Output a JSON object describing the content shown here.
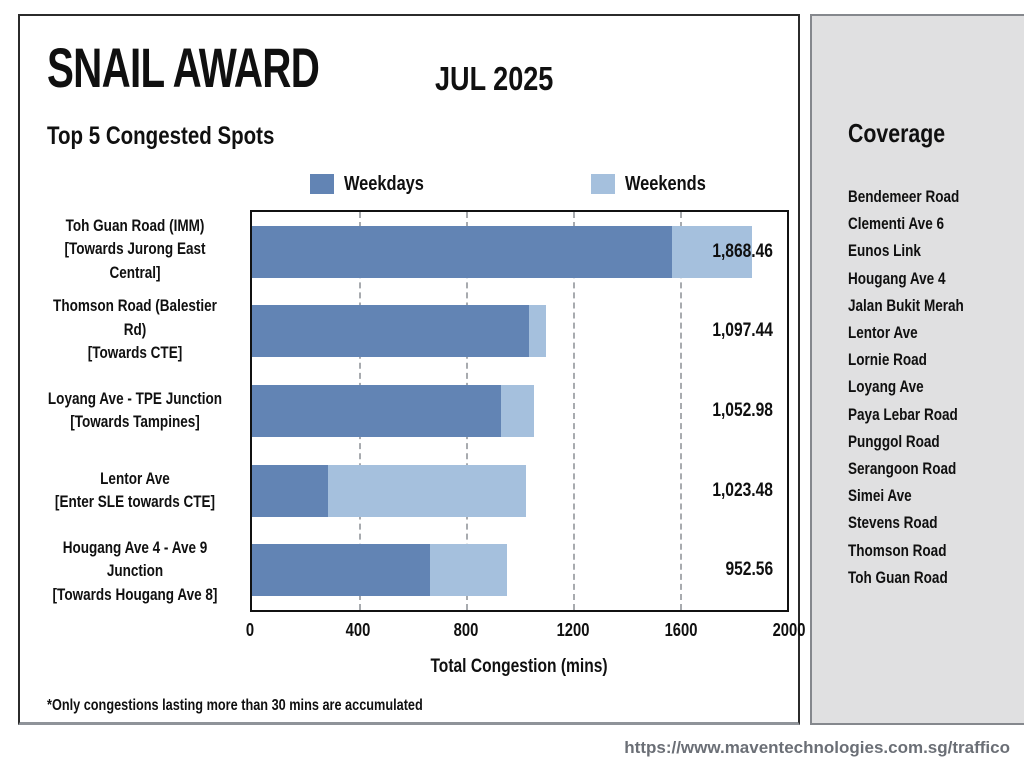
{
  "header": {
    "title": "SNAIL AWARD",
    "period": "JUL 2025",
    "subtitle": "Top 5 Congested Spots"
  },
  "legend": {
    "weekdays_label": "Weekdays",
    "weekends_label": "Weekends"
  },
  "colors": {
    "weekdays_bar": "#6284b4",
    "weekends_bar": "#a5c0dd",
    "sidebar_bg": "#e0e0e1",
    "gridline": "#a8abaf",
    "url_text": "#6b6f76"
  },
  "chart_data": {
    "type": "bar",
    "orientation": "horizontal-stacked",
    "title": "Top 5 Congested Spots",
    "xlabel": "Total Congestion (mins)",
    "ylabel": "",
    "xlim": [
      0,
      2000
    ],
    "xticks": [
      "0",
      "400",
      "800",
      "1200",
      "1600",
      "2000"
    ],
    "grid": "vertical-dashed",
    "legend_position": "top",
    "categories": [
      "Toh Guan Road (IMM) [Towards Jurong East Central]",
      "Thomson Road (Balestier Rd) [Towards CTE]",
      "Loyang Ave - TPE Junction [Towards Tampines]",
      "Lentor Ave [Enter SLE towards CTE]",
      "Hougang Ave 4 - Ave 9 Junction [Towards Hougang Ave 8]"
    ],
    "series": [
      {
        "name": "Weekdays",
        "color": "#6284b4",
        "values": [
          1570.0,
          1035.0,
          930.0,
          285.0,
          665.0
        ]
      },
      {
        "name": "Weekends",
        "color": "#a5c0dd",
        "values": [
          298.46,
          62.44,
          122.98,
          738.48,
          287.56
        ]
      }
    ],
    "totals": [
      1868.46,
      1097.44,
      1052.98,
      1023.48,
      952.56
    ],
    "rows": [
      {
        "label_line1": "Toh Guan Road (IMM)",
        "label_line2": "[Towards Jurong East Central]",
        "total_label": "1,868.46"
      },
      {
        "label_line1": "Thomson Road (Balestier Rd)",
        "label_line2": "[Towards CTE]",
        "total_label": "1,097.44"
      },
      {
        "label_line1": "Loyang Ave - TPE Junction",
        "label_line2": "[Towards Tampines]",
        "total_label": "1,052.98"
      },
      {
        "label_line1": "Lentor Ave",
        "label_line2": "[Enter SLE towards CTE]",
        "total_label": "1,023.48"
      },
      {
        "label_line1": "Hougang Ave 4 - Ave 9 Junction",
        "label_line2": "[Towards Hougang Ave 8]",
        "total_label": "952.56"
      }
    ]
  },
  "sidebar": {
    "title": "Coverage",
    "items": [
      "Bendemeer Road",
      "Clementi Ave 6",
      "Eunos Link",
      "Hougang Ave 4",
      "Jalan Bukit Merah",
      "Lentor Ave",
      "Lornie Road",
      "Loyang Ave",
      "Paya Lebar Road",
      "Punggol Road",
      "Serangoon Road",
      "Simei Ave",
      "Stevens Road",
      "Thomson Road",
      "Toh Guan Road"
    ]
  },
  "footnote": "*Only congestions lasting more than 30 mins are accumulated",
  "footer_url": "https://www.maventechnologies.com.sg/traffico"
}
